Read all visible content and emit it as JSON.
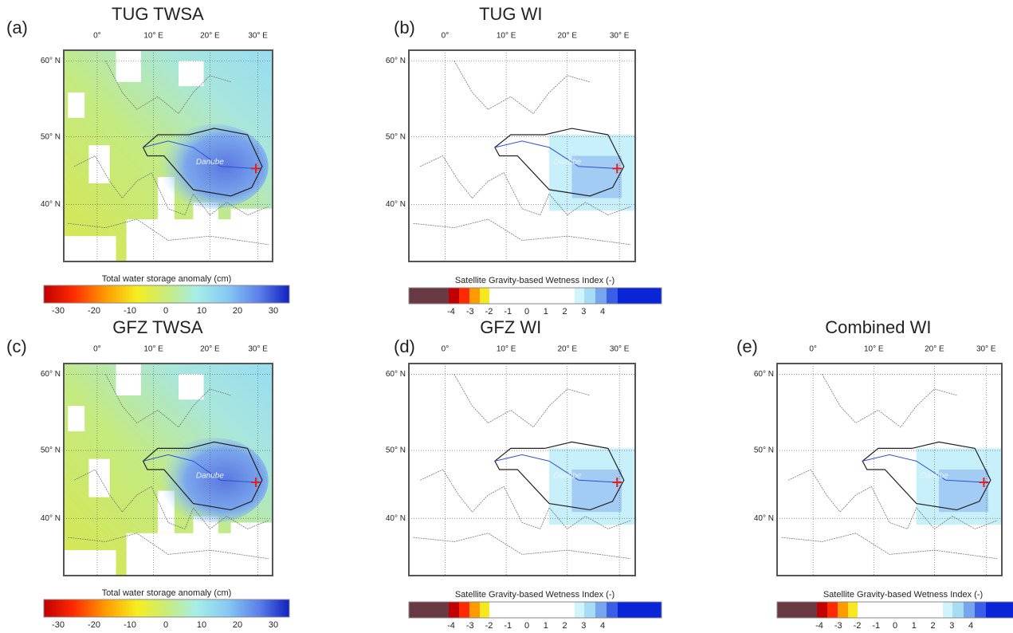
{
  "panels": [
    {
      "label": "(a)",
      "title": "TUG TWSA",
      "kind": "twsa",
      "lon_labels": [
        "0°",
        "10° E",
        "20° E",
        "30° E"
      ],
      "lat_labels": [
        "60° N",
        "50° N",
        "40° N"
      ],
      "basin": "Danube",
      "colorbar": {
        "title": "Total water storage anomaly (cm)",
        "ticks": [
          "-30",
          "-20",
          "-10",
          "0",
          "10",
          "20",
          "30"
        ]
      }
    },
    {
      "label": "(b)",
      "title": "TUG WI",
      "kind": "wi",
      "lon_labels": [
        "0°",
        "10° E",
        "20° E",
        "30° E"
      ],
      "lat_labels": [
        "60° N",
        "50° N",
        "40° N"
      ],
      "basin": "Danube",
      "colorbar": {
        "title": "Satellite Gravity-based Wetness Index (-)",
        "ticks": [
          "-4",
          "-3",
          "-2",
          "-1",
          "0",
          "1",
          "2",
          "3",
          "4"
        ]
      }
    },
    {
      "label": "(c)",
      "title": "GFZ TWSA",
      "kind": "twsa",
      "lon_labels": [
        "0°",
        "10° E",
        "20° E",
        "30° E"
      ],
      "lat_labels": [
        "60° N",
        "50° N",
        "40° N"
      ],
      "basin": "Danube",
      "colorbar": {
        "title": "Total water storage anomaly (cm)",
        "ticks": [
          "-30",
          "-20",
          "-10",
          "0",
          "10",
          "20",
          "30"
        ]
      }
    },
    {
      "label": "(d)",
      "title": "GFZ WI",
      "kind": "wi",
      "lon_labels": [
        "0°",
        "10° E",
        "20° E",
        "30° E"
      ],
      "lat_labels": [
        "60° N",
        "50° N",
        "40° N"
      ],
      "basin": "Danube",
      "colorbar": {
        "title": "Satellite Gravity-based Wetness Index (-)",
        "ticks": [
          "-4",
          "-3",
          "-2",
          "-1",
          "0",
          "1",
          "2",
          "3",
          "4"
        ]
      }
    },
    {
      "label": "(e)",
      "title": "Combined WI",
      "kind": "wi",
      "lon_labels": [
        "0°",
        "10° E",
        "20° E",
        "30° E"
      ],
      "lat_labels": [
        "60° N",
        "50° N",
        "40° N"
      ],
      "basin": "Danube",
      "colorbar": {
        "title": "Satellite Gravity-based Wetness Index (-)",
        "ticks": [
          "-4",
          "-3",
          "-2",
          "-1",
          "0",
          "1",
          "2",
          "3",
          "4"
        ]
      }
    }
  ]
}
